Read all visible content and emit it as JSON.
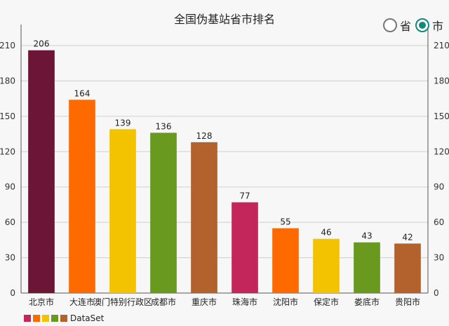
{
  "chart_data": {
    "type": "bar",
    "title": "全国伪基站省市排名",
    "categories": [
      "北京市",
      "大连市",
      "澳门特别行政区",
      "成都市",
      "重庆市",
      "珠海市",
      "沈阳市",
      "保定市",
      "娄底市",
      "贵阳市"
    ],
    "values": [
      206,
      164,
      139,
      136,
      128,
      77,
      55,
      46,
      43,
      42
    ],
    "series": [
      {
        "name": "DataSet",
        "values": [
          206,
          164,
          139,
          136,
          128,
          77,
          55,
          46,
          43,
          42
        ]
      }
    ],
    "ylim": [
      0,
      210
    ],
    "yticks": [
      0,
      30,
      60,
      90,
      120,
      150,
      180,
      210
    ],
    "grid": true,
    "legend_position": "bottom-left",
    "colors": [
      "#6d1535",
      "#ff6a00",
      "#f3c200",
      "#6a991f",
      "#b3622d",
      "#c2265a",
      "#ff6a00",
      "#f3c200",
      "#6a991f",
      "#b3622d"
    ]
  },
  "toggle": {
    "options": [
      {
        "label": "省",
        "selected": false
      },
      {
        "label": "市",
        "selected": true
      }
    ],
    "accent_color": "#0f8a7a"
  },
  "legend": {
    "label": "DataSet",
    "swatch_colors": [
      "#c2265a",
      "#ff6a00",
      "#f3c200",
      "#6a991f",
      "#b3622d"
    ]
  }
}
